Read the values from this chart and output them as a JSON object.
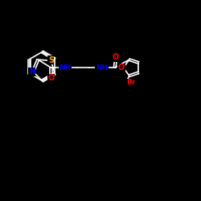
{
  "background_color": "#000000",
  "bond_color": "#ffffff",
  "atom_colors": {
    "N": "#0000ff",
    "O": "#ff0000",
    "S": "#ffa500",
    "Br": "#ff0000",
    "C": "#ffffff"
  },
  "figsize": [
    2.5,
    2.5
  ],
  "dpi": 100
}
